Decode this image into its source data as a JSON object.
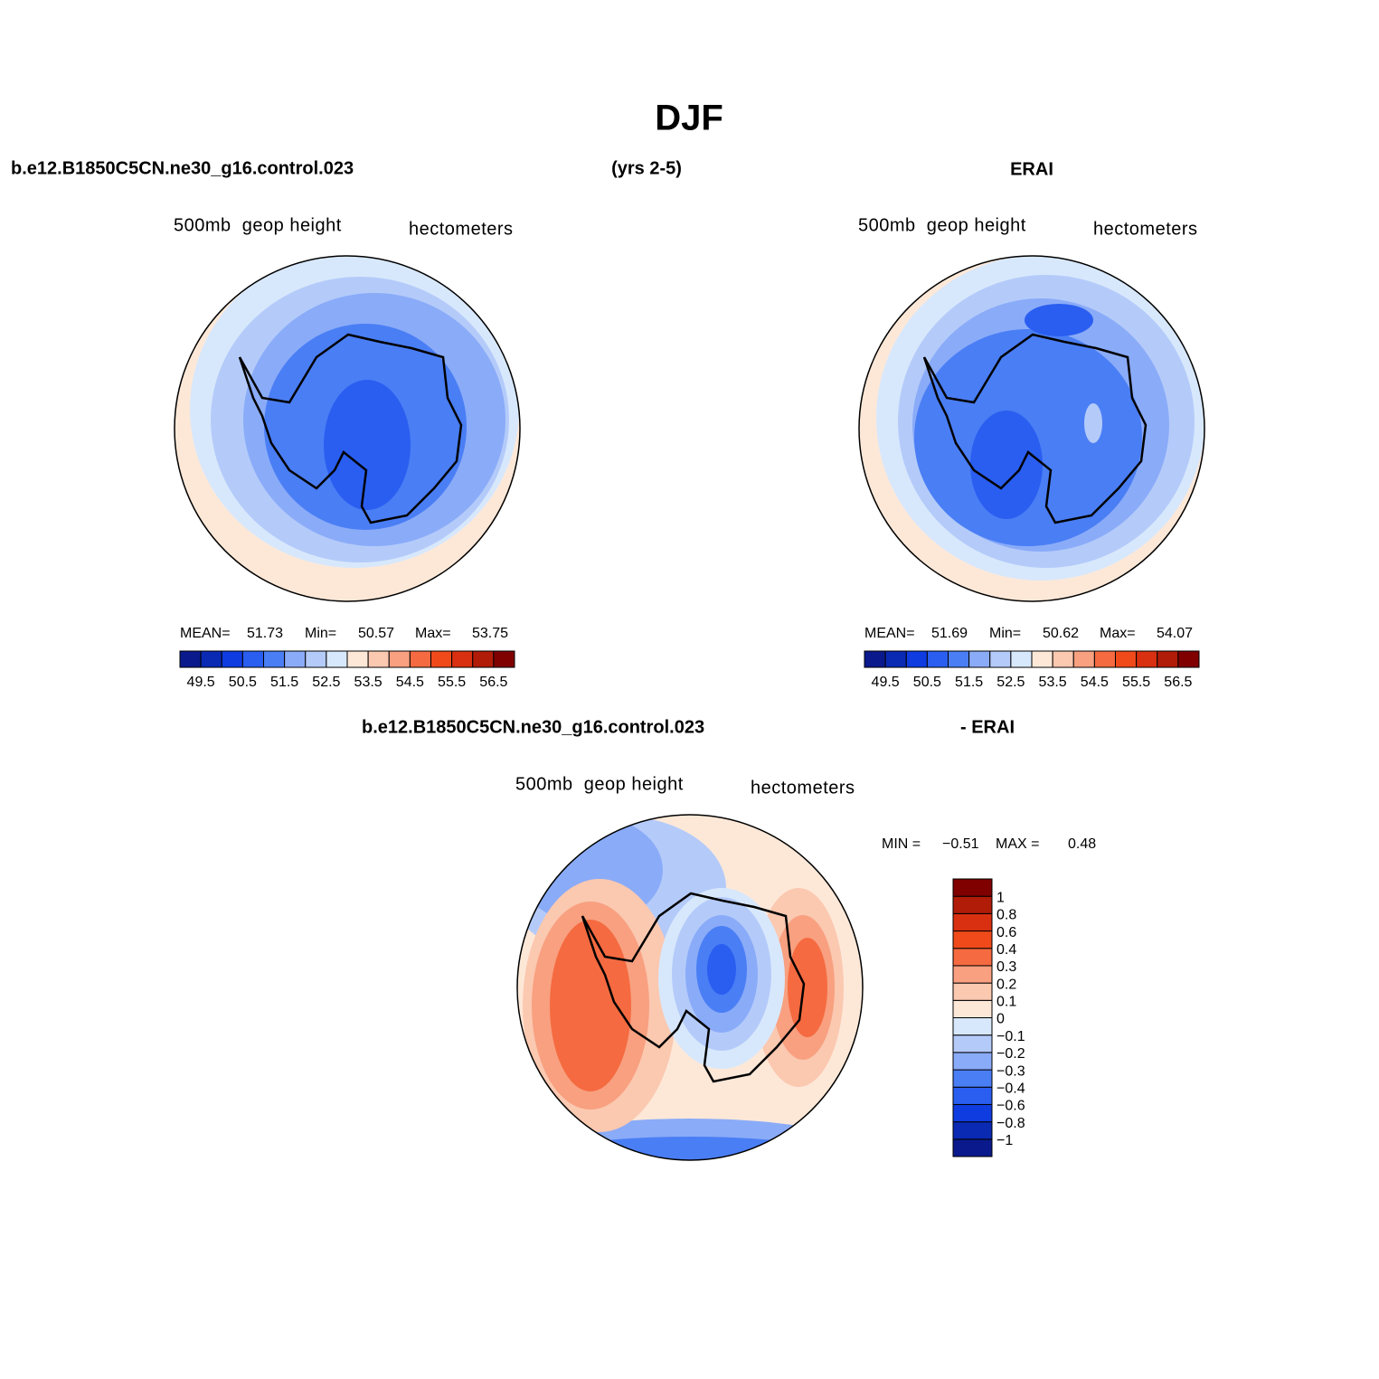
{
  "title": "DJF",
  "header": {
    "case": "b.e12.B1850C5CN.ne30_g16.control.023",
    "years": "(yrs 2-5)",
    "reference": "ERAI"
  },
  "diff_header": {
    "case": "b.e12.B1850C5CN.ne30_g16.control.023",
    "reference": "- ERAI"
  },
  "colors": [
    "#0a1a8c",
    "#0a2ab4",
    "#0f3ce0",
    "#2a5ef0",
    "#4a7ef5",
    "#8aabf8",
    "#b4cbfa",
    "#d8e8fc",
    "#fde8d8",
    "#fbc8b0",
    "#f8a080",
    "#f56a40",
    "#f04a1a",
    "#d83010",
    "#b01c08",
    "#800000"
  ],
  "panels": [
    {
      "variable": "500mb  geop height",
      "units": "hectometers",
      "stats": [
        {
          "label": "MEAN=",
          "value": "51.73"
        },
        {
          "label": "Min=",
          "value": "50.57"
        },
        {
          "label": "Max=",
          "value": "53.75"
        }
      ],
      "colorbar_labels": [
        "49.5",
        "50.5",
        "51.5",
        "52.5",
        "53.5",
        "54.5",
        "55.5",
        "56.5"
      ]
    },
    {
      "variable": "500mb  geop height",
      "units": "hectometers",
      "stats": [
        {
          "label": "MEAN=",
          "value": "51.69"
        },
        {
          "label": "Min=",
          "value": "50.62"
        },
        {
          "label": "Max=",
          "value": "54.07"
        }
      ],
      "colorbar_labels": [
        "49.5",
        "50.5",
        "51.5",
        "52.5",
        "53.5",
        "54.5",
        "55.5",
        "56.5"
      ]
    },
    {
      "variable": "500mb  geop height",
      "units": "hectometers",
      "stats": [
        {
          "label": "MIN =",
          "value": "−0.51"
        },
        {
          "label": "MAX =",
          "value": "0.48"
        }
      ],
      "colorbar_labels": [
        "1",
        "0.8",
        "0.6",
        "0.4",
        "0.3",
        "0.2",
        "0.1",
        "0",
        "−0.1",
        "−0.2",
        "−0.3",
        "−0.4",
        "−0.6",
        "−0.8",
        "−1"
      ]
    }
  ]
}
